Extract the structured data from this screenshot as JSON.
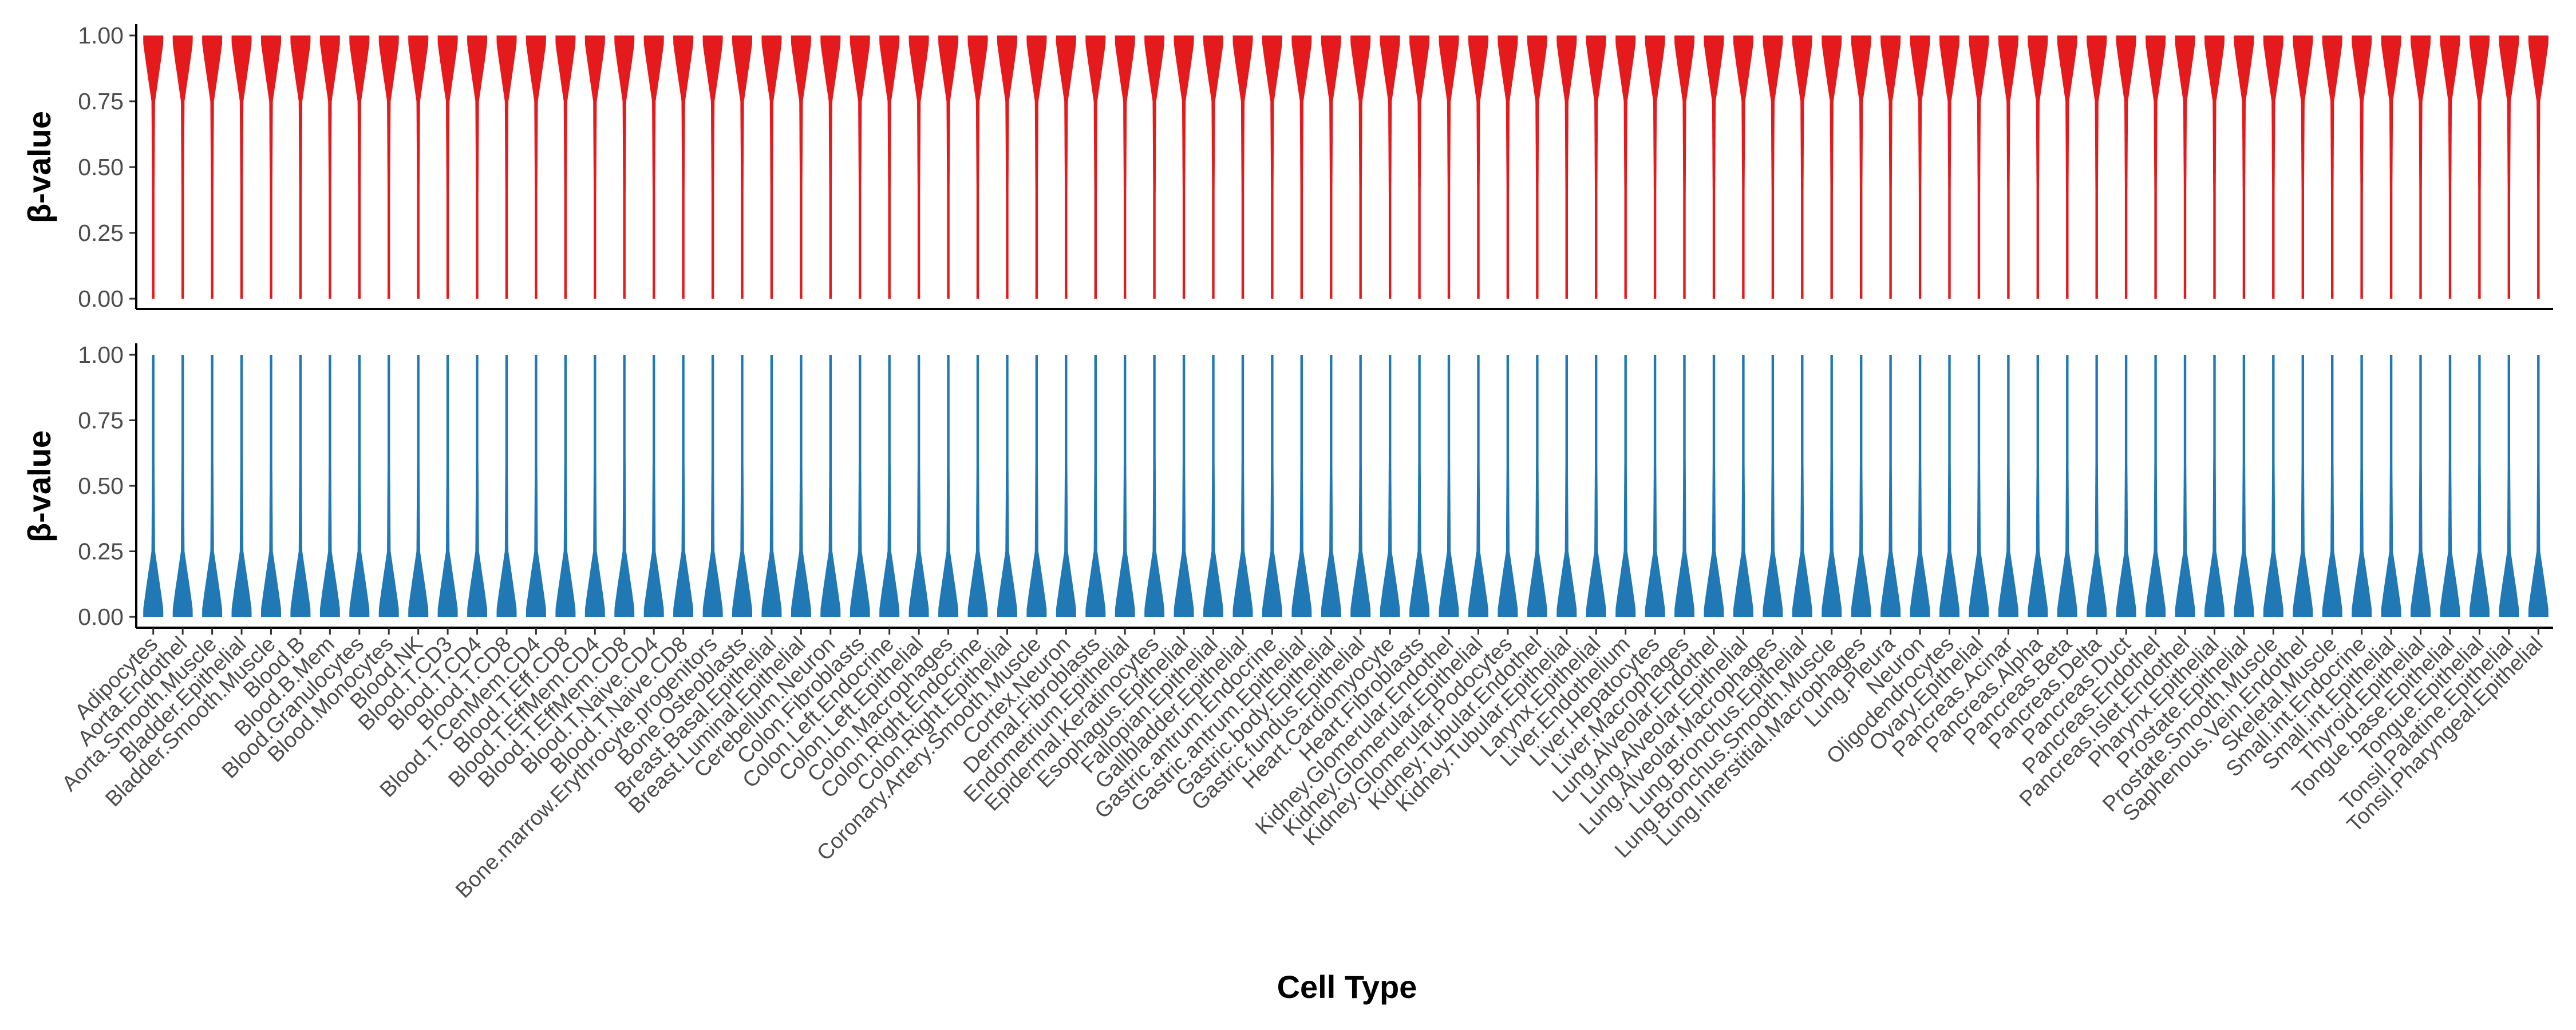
{
  "chart_data": [
    {
      "type": "violin",
      "ylabel": "β-value",
      "xlabel": "",
      "ylim": [
        0,
        1
      ],
      "yticks": [
        "0.00",
        "0.25",
        "0.50",
        "0.75",
        "1.00"
      ],
      "color": "#e41a1c",
      "distribution": "concentrated near 1.0 (methylated) for every cell type",
      "categories": []
    },
    {
      "type": "violin",
      "ylabel": "β-value",
      "xlabel": "Cell Type",
      "ylim": [
        0,
        1
      ],
      "yticks": [
        "0.00",
        "0.25",
        "0.50",
        "0.75",
        "1.00"
      ],
      "color": "#2078b4",
      "distribution": "concentrated near 0.0 (unmethylated) for every cell type",
      "categories": [
        "Adipocytes",
        "Aorta.Endothel",
        "Aorta.Smooth.Muscle",
        "Bladder.Epithelial",
        "Bladder.Smooth.Muscle",
        "Blood.B",
        "Blood.B.Mem",
        "Blood.Granulocytes",
        "Blood.Monocytes",
        "Blood.NK",
        "Blood.T.CD3",
        "Blood.T.CD4",
        "Blood.T.CD8",
        "Blood.T.CenMem.CD4",
        "Blood.T.Eff.CD8",
        "Blood.T.EffMem.CD4",
        "Blood.T.EffMem.CD8",
        "Blood.T.Naive.CD4",
        "Blood.T.Naive.CD8",
        "Bone.marrow.Erythrocyte.progenitors",
        "Bone.Osteoblasts",
        "Breast.Basal.Epithelial",
        "Breast.Luminal.Epithelial",
        "Cerebellum.Neuron",
        "Colon.Fibroblasts",
        "Colon.Left.Endocrine",
        "Colon.Left.Epithelial",
        "Colon.Macrophages",
        "Colon.Right.Endocrine",
        "Colon.Right.Epithelial",
        "Coronary.Artery.Smooth.Muscle",
        "Cortex.Neuron",
        "Dermal.Fibroblasts",
        "Endometrium.Epithelial",
        "Epidermal.Keratinocytes",
        "Esophagus.Epithelial",
        "Fallopian.Epithelial",
        "Gallbladder.Epithelial",
        "Gastric.antrum.Endocrine",
        "Gastric.antrum.Epithelial",
        "Gastric.body.Epithelial",
        "Gastric.fundus.Epithelial",
        "Heart.Cardiomyocyte",
        "Heart.Fibroblasts",
        "Kidney.Glomerular.Endothel",
        "Kidney.Glomerular.Epithelial",
        "Kidney.Glomerular.Podocytes",
        "Kidney.Tubular.Endothel",
        "Kidney.Tubular.Epithelial",
        "Larynx.Epithelial",
        "Liver.Endothelium",
        "Liver.Hepatocytes",
        "Liver.Macrophages",
        "Lung.Alveolar.Endothel",
        "Lung.Alveolar.Epithelial",
        "Lung.Alveolar.Macrophages",
        "Lung.Bronchus.Epithelial",
        "Lung.Bronchus.Smooth.Muscle",
        "Lung.Interstitial.Macrophages",
        "Lung.Pleura",
        "Neuron",
        "Oligodendrocytes",
        "Ovary.Epithelial",
        "Pancreas.Acinar",
        "Pancreas.Alpha",
        "Pancreas.Beta",
        "Pancreas.Delta",
        "Pancreas.Duct",
        "Pancreas.Endothel",
        "Pancreas.Islet.Endothel",
        "Pharynx.Epithelial",
        "Prostate.Epithelial",
        "Prostate.Smooth.Muscle",
        "Saphenous.Vein.Endothel",
        "Skeletal.Muscle",
        "Small.int.Endocrine",
        "Small.int.Epithelial",
        "Thyroid.Epithelial",
        "Tongue.base.Epithelial",
        "Tongue.Epithelial",
        "Tonsil.Palatine.Epithelial",
        "Tonsil.Pharyngeal.Epithelial"
      ]
    }
  ]
}
